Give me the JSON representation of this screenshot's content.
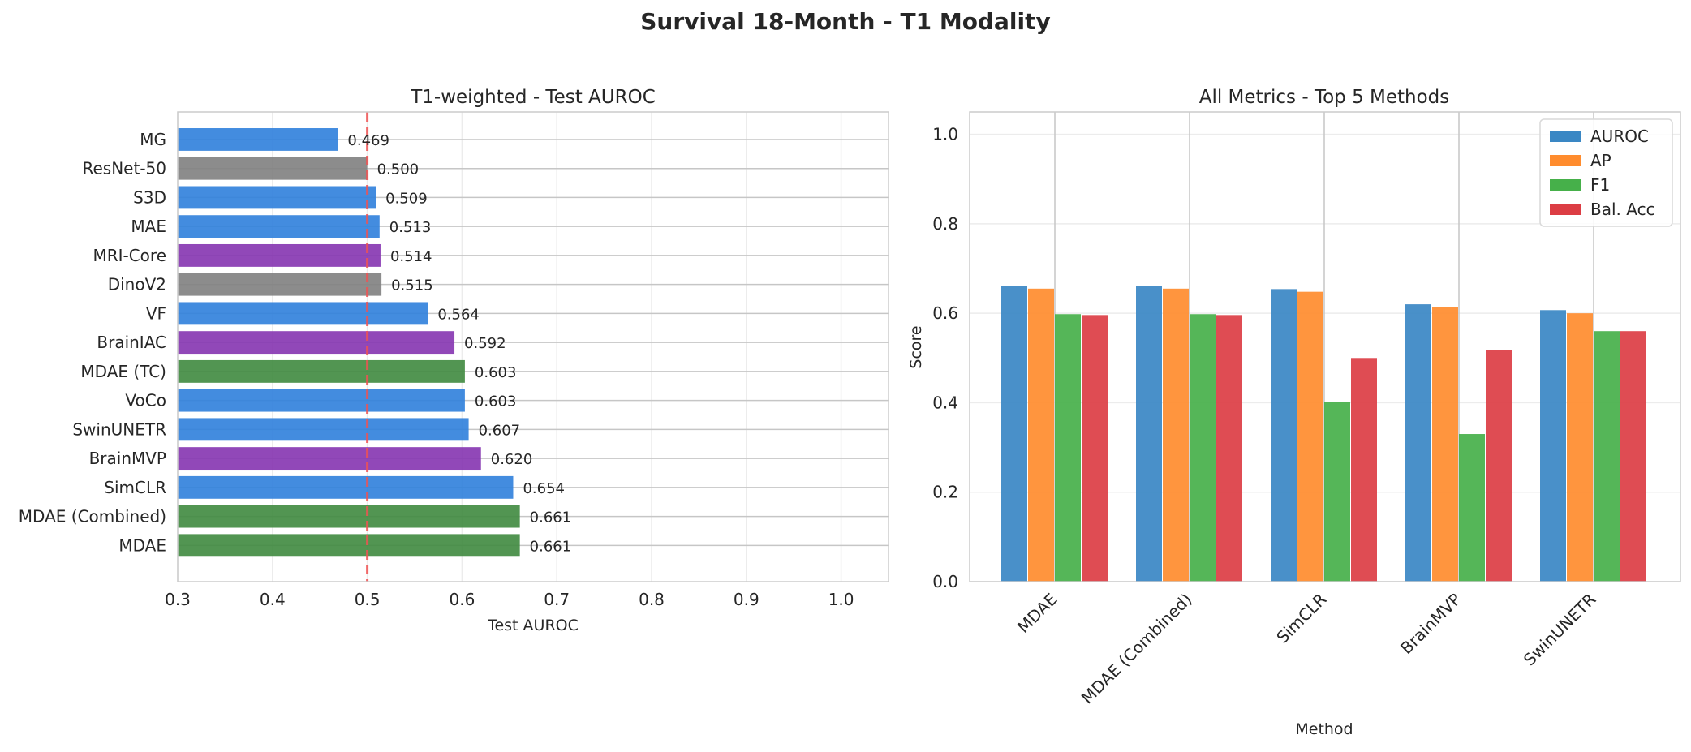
{
  "figure": {
    "suptitle": "Survival 18-Month - T1 Modality"
  },
  "chart_data": [
    {
      "type": "bar",
      "orientation": "horizontal",
      "title": "T1-weighted - Test AUROC",
      "xlabel": "Test AUROC",
      "ylabel": "",
      "xlim": [
        0.3,
        1.05
      ],
      "xticks": [
        "0.3",
        "0.4",
        "0.5",
        "0.6",
        "0.7",
        "0.8",
        "0.9",
        "1.0"
      ],
      "grid": true,
      "reference_line": {
        "value": 0.5,
        "color": "#f05252",
        "style": "dashed"
      },
      "categories": [
        "MG",
        "ResNet-50",
        "S3D",
        "MAE",
        "MRI-Core",
        "DinoV2",
        "VF",
        "BrainIAC",
        "MDAE (TC)",
        "VoCo",
        "SwinUNETR",
        "BrainMVP",
        "SimCLR",
        "MDAE (Combined)",
        "MDAE"
      ],
      "values": [
        0.469,
        0.5,
        0.509,
        0.513,
        0.514,
        0.515,
        0.564,
        0.592,
        0.603,
        0.603,
        0.607,
        0.62,
        0.654,
        0.661,
        0.661
      ],
      "value_labels": [
        "0.469",
        "0.500",
        "0.509",
        "0.513",
        "0.514",
        "0.515",
        "0.564",
        "0.592",
        "0.603",
        "0.603",
        "0.607",
        "0.620",
        "0.654",
        "0.661",
        "0.661"
      ],
      "colors": [
        "#2f80dc",
        "#808080",
        "#2f80dc",
        "#2f80dc",
        "#8534b0",
        "#808080",
        "#2f80dc",
        "#8534b0",
        "#3f8a3f",
        "#2f80dc",
        "#2f80dc",
        "#8534b0",
        "#2f80dc",
        "#3f8a3f",
        "#3f8a3f"
      ]
    },
    {
      "type": "bar",
      "orientation": "vertical",
      "title": "All Metrics - Top 5 Methods",
      "xlabel": "Method",
      "ylabel": "Score",
      "ylim": [
        0,
        1.05
      ],
      "yticks": [
        "0.0",
        "0.2",
        "0.4",
        "0.6",
        "0.8",
        "1.0"
      ],
      "grid": true,
      "legend": "top-right",
      "categories": [
        "MDAE",
        "MDAE (Combined)",
        "SimCLR",
        "BrainMVP",
        "SwinUNETR"
      ],
      "series": [
        {
          "name": "AUROC",
          "color": "#3a87c4",
          "values": [
            0.661,
            0.661,
            0.654,
            0.62,
            0.607
          ]
        },
        {
          "name": "AP",
          "color": "#ff8c2e",
          "values": [
            0.655,
            0.655,
            0.648,
            0.614,
            0.6
          ]
        },
        {
          "name": "F1",
          "color": "#46b04a",
          "values": [
            0.598,
            0.598,
            0.402,
            0.33,
            0.56
          ]
        },
        {
          "name": "Bal. Acc",
          "color": "#dc3d44",
          "values": [
            0.596,
            0.596,
            0.5,
            0.518,
            0.56
          ]
        }
      ]
    }
  ]
}
